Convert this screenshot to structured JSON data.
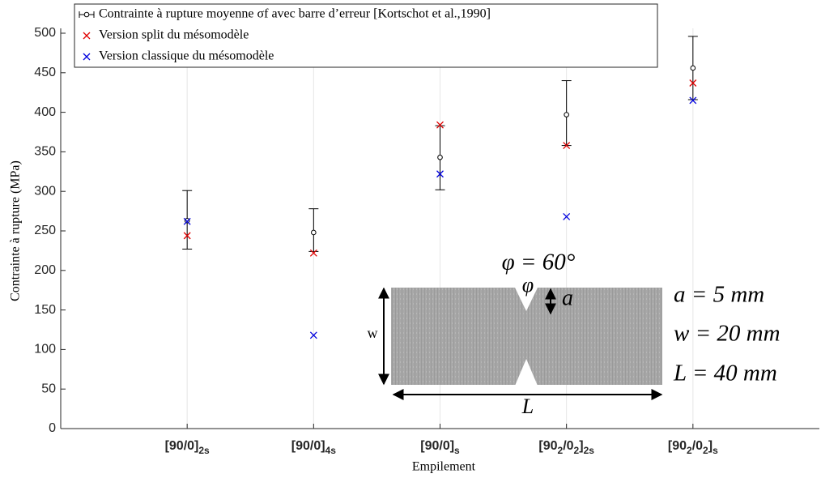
{
  "chart_data": {
    "type": "scatter",
    "x_label": "Empilement",
    "y_label": "Contrainte à rupture (MPa)",
    "categories": [
      [
        "[90/0]",
        "2s"
      ],
      [
        "[90/0]",
        "4s"
      ],
      [
        "[90/0]",
        "s"
      ],
      [
        "[90",
        "2",
        "/0",
        "2",
        "]",
        "2s"
      ],
      [
        "[90",
        "2",
        "/0",
        "2",
        "]",
        "s"
      ]
    ],
    "ylim": [
      0,
      500
    ],
    "yticks": [
      0,
      50,
      100,
      150,
      200,
      250,
      300,
      350,
      400,
      450,
      500
    ],
    "grid": "x",
    "legend": "upper left",
    "series": [
      {
        "name": "Contrainte à rupture moyenne σf avec barre d’erreur [Kortschot et al.,1990]",
        "color": "#000000",
        "marker": "circle",
        "values": [
          263,
          248,
          343,
          397,
          456
        ],
        "error_low": [
          36,
          24,
          41,
          39,
          40
        ],
        "error_high": [
          38,
          30,
          40,
          43,
          40
        ]
      },
      {
        "name": "Version split du mésomodèle",
        "color": "#e00000",
        "marker": "x",
        "values": [
          244,
          222,
          384,
          358,
          437
        ]
      },
      {
        "name": "Version classique du mésomodèle",
        "color": "#0000dd",
        "marker": "x",
        "values": [
          262,
          118,
          322,
          268,
          415
        ]
      }
    ],
    "inset": {
      "angle_label": "φ = 60°",
      "phi": "φ",
      "a": "a",
      "w": "w",
      "L": "L",
      "specs": [
        "a = 5 mm",
        "w = 20 mm",
        "L = 40 mm"
      ]
    }
  }
}
